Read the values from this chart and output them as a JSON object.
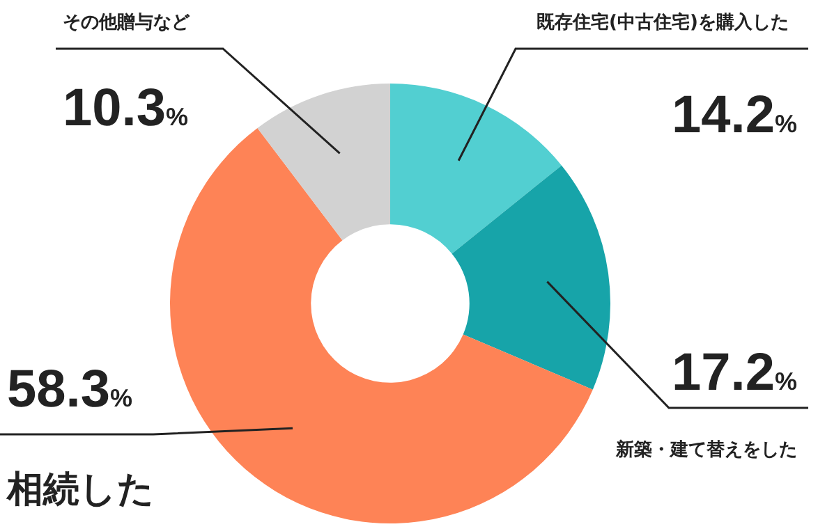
{
  "chart_data": {
    "type": "donut",
    "categories": [
      "既存住宅(中古住宅)を購入した",
      "新築・建て替えをした",
      "相続した",
      "その他贈与など"
    ],
    "values": [
      14.2,
      17.2,
      58.3,
      10.3
    ],
    "colors": [
      "#52cfd1",
      "#17a4a9",
      "#fe8356",
      "#d2d2d2"
    ],
    "value_labels": [
      "14.2%",
      "17.2%",
      "58.3%",
      "10.3%"
    ],
    "legend": false
  }
}
